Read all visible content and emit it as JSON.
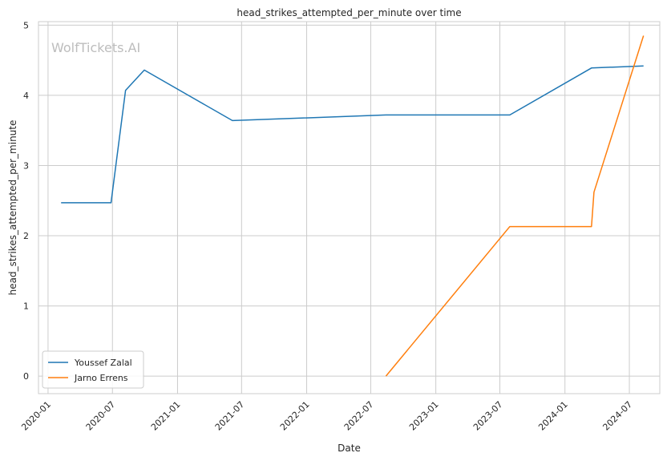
{
  "chart_data": {
    "type": "line",
    "title": "head_strikes_attempted_per_minute over time",
    "xlabel": "Date",
    "ylabel": "head_strikes_attempted_per_minute",
    "watermark": "WolfTickets.AI",
    "x_type": "date",
    "xlim": [
      "2019-12-05",
      "2024-09-25"
    ],
    "ylim": [
      -0.25,
      5.05
    ],
    "x_ticks": [
      {
        "date": "2020-01-01",
        "label": "2020-01"
      },
      {
        "date": "2020-07-01",
        "label": "2020-07"
      },
      {
        "date": "2021-01-01",
        "label": "2021-01"
      },
      {
        "date": "2021-07-01",
        "label": "2021-07"
      },
      {
        "date": "2022-01-01",
        "label": "2022-01"
      },
      {
        "date": "2022-07-01",
        "label": "2022-07"
      },
      {
        "date": "2023-01-01",
        "label": "2023-01"
      },
      {
        "date": "2023-07-01",
        "label": "2023-07"
      },
      {
        "date": "2024-01-01",
        "label": "2024-01"
      },
      {
        "date": "2024-07-01",
        "label": "2024-07"
      }
    ],
    "y_ticks": [
      0,
      1,
      2,
      3,
      4,
      5
    ],
    "grid": true,
    "legend_position": "bottom-left",
    "series": [
      {
        "name": "Youssef Zalal",
        "color": "#1f77b4",
        "points": [
          {
            "x": "2020-02-07",
            "y": 2.47
          },
          {
            "x": "2020-06-27",
            "y": 2.47
          },
          {
            "x": "2020-08-07",
            "y": 4.07
          },
          {
            "x": "2020-09-29",
            "y": 4.36
          },
          {
            "x": "2021-06-05",
            "y": 3.64
          },
          {
            "x": "2022-08-13",
            "y": 3.72
          },
          {
            "x": "2023-07-29",
            "y": 3.72
          },
          {
            "x": "2024-03-16",
            "y": 4.39
          },
          {
            "x": "2024-08-10",
            "y": 4.42
          }
        ]
      },
      {
        "name": "Jarno Errens",
        "color": "#ff7f0e",
        "points": [
          {
            "x": "2022-08-13",
            "y": 0.0
          },
          {
            "x": "2023-07-29",
            "y": 2.13
          },
          {
            "x": "2024-03-16",
            "y": 2.13
          },
          {
            "x": "2024-03-23",
            "y": 2.62
          },
          {
            "x": "2024-08-10",
            "y": 4.85
          }
        ]
      }
    ]
  }
}
